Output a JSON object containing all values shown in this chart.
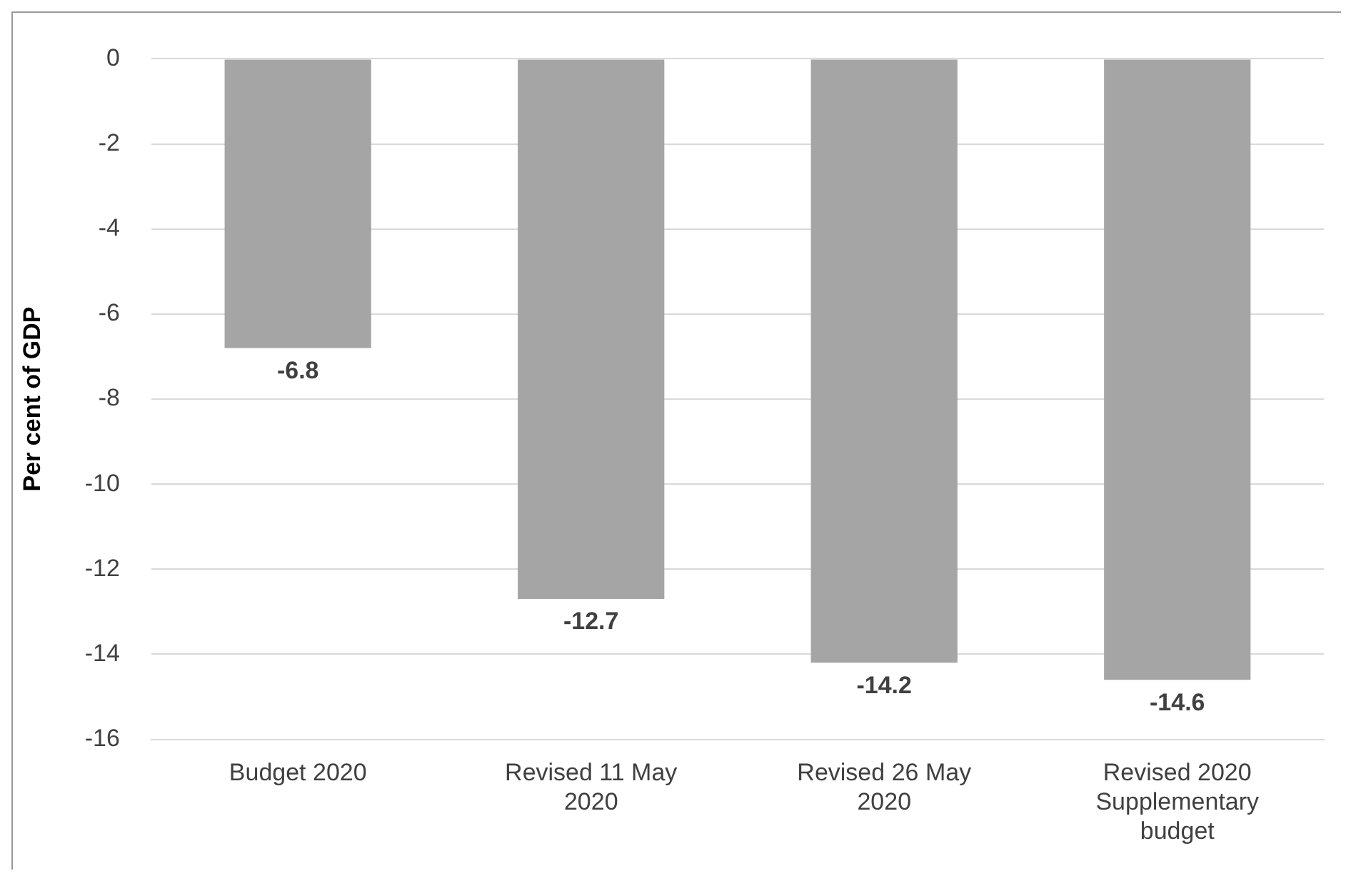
{
  "chart_data": {
    "type": "bar",
    "ylabel": "Per cent of GDP",
    "categories": [
      "Budget 2020",
      "Revised 11 May 2020",
      "Revised 26 May 2020",
      "Revised 2020 Supplementary budget"
    ],
    "values": [
      -6.8,
      -12.7,
      -14.2,
      -14.6
    ],
    "color": "#a5a5a5",
    "ylim": [
      -16,
      0
    ],
    "yticks": [
      0,
      -2,
      -4,
      -6,
      -8,
      -10,
      -12,
      -14,
      -16
    ],
    "grid": "y",
    "data_labels": true,
    "legend": false
  }
}
